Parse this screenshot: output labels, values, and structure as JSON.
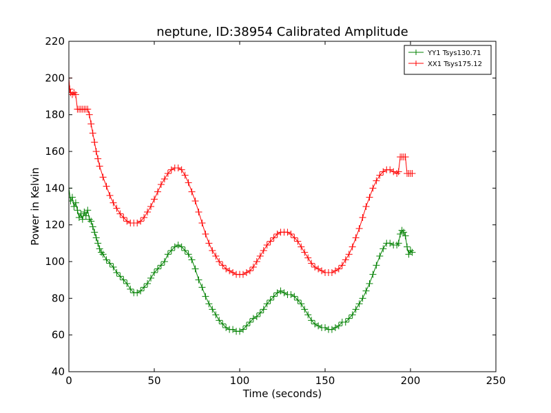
{
  "chart_data": {
    "type": "line",
    "title": "neptune, ID:38954 Calibrated Amplitude",
    "xlabel": "Time (seconds)",
    "ylabel": "Power in Kelvin",
    "xlim": [
      0,
      250
    ],
    "ylim": [
      40,
      220
    ],
    "xticks": [
      "0",
      "50",
      "100",
      "150",
      "200",
      "250"
    ],
    "yticks": [
      "40",
      "60",
      "80",
      "100",
      "120",
      "140",
      "160",
      "180",
      "200",
      "220"
    ],
    "grid": false,
    "legend_position": "top-right",
    "marker": "+",
    "series": [
      {
        "name": "YY1 Tsys130.71",
        "color": "#008000",
        "points": [
          [
            0,
            140
          ],
          [
            1,
            133
          ],
          [
            2,
            135
          ],
          [
            3,
            130
          ],
          [
            4,
            132
          ],
          [
            5,
            128
          ],
          [
            6,
            124
          ],
          [
            7,
            126
          ],
          [
            8,
            123
          ],
          [
            9,
            127
          ],
          [
            10,
            125
          ],
          [
            11,
            128
          ],
          [
            12,
            123
          ],
          [
            13,
            122
          ],
          [
            14,
            119
          ],
          [
            15,
            116
          ],
          [
            16,
            113
          ],
          [
            17,
            110
          ],
          [
            18,
            107
          ],
          [
            19,
            105
          ],
          [
            20,
            104
          ],
          [
            22,
            101
          ],
          [
            24,
            99
          ],
          [
            26,
            97
          ],
          [
            28,
            94
          ],
          [
            30,
            92
          ],
          [
            32,
            90
          ],
          [
            34,
            88
          ],
          [
            36,
            85
          ],
          [
            38,
            83
          ],
          [
            40,
            83
          ],
          [
            42,
            84
          ],
          [
            44,
            86
          ],
          [
            46,
            88
          ],
          [
            48,
            91
          ],
          [
            50,
            94
          ],
          [
            52,
            96
          ],
          [
            54,
            98
          ],
          [
            56,
            100
          ],
          [
            58,
            104
          ],
          [
            60,
            106
          ],
          [
            62,
            108
          ],
          [
            64,
            109
          ],
          [
            66,
            108
          ],
          [
            68,
            106
          ],
          [
            70,
            104
          ],
          [
            72,
            101
          ],
          [
            74,
            96
          ],
          [
            76,
            90
          ],
          [
            78,
            86
          ],
          [
            80,
            81
          ],
          [
            82,
            77
          ],
          [
            84,
            74
          ],
          [
            86,
            71
          ],
          [
            88,
            68
          ],
          [
            90,
            66
          ],
          [
            92,
            64
          ],
          [
            94,
            63
          ],
          [
            96,
            63
          ],
          [
            98,
            62
          ],
          [
            100,
            62
          ],
          [
            102,
            63
          ],
          [
            104,
            65
          ],
          [
            106,
            67
          ],
          [
            108,
            69
          ],
          [
            110,
            70
          ],
          [
            112,
            72
          ],
          [
            114,
            74
          ],
          [
            116,
            77
          ],
          [
            118,
            79
          ],
          [
            120,
            81
          ],
          [
            122,
            83
          ],
          [
            124,
            84
          ],
          [
            126,
            83
          ],
          [
            128,
            82
          ],
          [
            130,
            82
          ],
          [
            132,
            81
          ],
          [
            134,
            79
          ],
          [
            136,
            77
          ],
          [
            138,
            74
          ],
          [
            140,
            71
          ],
          [
            142,
            68
          ],
          [
            144,
            66
          ],
          [
            146,
            65
          ],
          [
            148,
            64
          ],
          [
            150,
            64
          ],
          [
            152,
            63
          ],
          [
            154,
            63
          ],
          [
            156,
            64
          ],
          [
            158,
            65
          ],
          [
            160,
            67
          ],
          [
            162,
            67
          ],
          [
            164,
            69
          ],
          [
            166,
            71
          ],
          [
            168,
            74
          ],
          [
            170,
            77
          ],
          [
            172,
            80
          ],
          [
            174,
            84
          ],
          [
            176,
            88
          ],
          [
            178,
            93
          ],
          [
            180,
            98
          ],
          [
            182,
            103
          ],
          [
            184,
            107
          ],
          [
            186,
            110
          ],
          [
            188,
            110
          ],
          [
            190,
            109
          ],
          [
            192,
            109
          ],
          [
            193,
            110
          ],
          [
            194,
            115
          ],
          [
            195,
            117
          ],
          [
            196,
            116
          ],
          [
            197,
            114
          ],
          [
            198,
            108
          ],
          [
            199,
            104
          ],
          [
            200,
            106
          ],
          [
            201,
            105
          ]
        ]
      },
      {
        "name": "XX1 Tsys175.12",
        "color": "#ff0000",
        "points": [
          [
            0,
            200
          ],
          [
            0.5,
            194
          ],
          [
            1,
            192
          ],
          [
            2,
            191
          ],
          [
            3,
            192
          ],
          [
            4,
            191
          ],
          [
            5,
            183
          ],
          [
            6,
            183
          ],
          [
            7,
            183
          ],
          [
            8,
            183
          ],
          [
            9,
            183
          ],
          [
            10,
            183
          ],
          [
            11,
            183
          ],
          [
            12,
            180
          ],
          [
            13,
            175
          ],
          [
            14,
            170
          ],
          [
            15,
            165
          ],
          [
            16,
            160
          ],
          [
            17,
            156
          ],
          [
            18,
            152
          ],
          [
            20,
            146
          ],
          [
            22,
            141
          ],
          [
            24,
            136
          ],
          [
            26,
            132
          ],
          [
            28,
            129
          ],
          [
            30,
            126
          ],
          [
            32,
            124
          ],
          [
            34,
            122
          ],
          [
            36,
            121
          ],
          [
            38,
            121
          ],
          [
            40,
            121
          ],
          [
            42,
            122
          ],
          [
            44,
            124
          ],
          [
            46,
            127
          ],
          [
            48,
            130
          ],
          [
            50,
            134
          ],
          [
            52,
            138
          ],
          [
            54,
            142
          ],
          [
            56,
            145
          ],
          [
            58,
            148
          ],
          [
            60,
            150
          ],
          [
            62,
            151
          ],
          [
            64,
            151
          ],
          [
            66,
            150
          ],
          [
            68,
            147
          ],
          [
            70,
            143
          ],
          [
            72,
            138
          ],
          [
            74,
            133
          ],
          [
            76,
            127
          ],
          [
            78,
            121
          ],
          [
            80,
            115
          ],
          [
            82,
            110
          ],
          [
            84,
            106
          ],
          [
            86,
            103
          ],
          [
            88,
            100
          ],
          [
            90,
            98
          ],
          [
            92,
            96
          ],
          [
            94,
            95
          ],
          [
            96,
            94
          ],
          [
            98,
            93
          ],
          [
            100,
            93
          ],
          [
            102,
            93
          ],
          [
            104,
            94
          ],
          [
            106,
            95
          ],
          [
            108,
            97
          ],
          [
            110,
            100
          ],
          [
            112,
            103
          ],
          [
            114,
            106
          ],
          [
            116,
            109
          ],
          [
            118,
            111
          ],
          [
            120,
            113
          ],
          [
            122,
            115
          ],
          [
            124,
            116
          ],
          [
            126,
            116
          ],
          [
            128,
            116
          ],
          [
            130,
            115
          ],
          [
            132,
            113
          ],
          [
            134,
            111
          ],
          [
            136,
            108
          ],
          [
            138,
            105
          ],
          [
            140,
            102
          ],
          [
            142,
            99
          ],
          [
            144,
            97
          ],
          [
            146,
            96
          ],
          [
            148,
            95
          ],
          [
            150,
            94
          ],
          [
            152,
            94
          ],
          [
            154,
            94
          ],
          [
            156,
            95
          ],
          [
            158,
            96
          ],
          [
            160,
            98
          ],
          [
            162,
            101
          ],
          [
            164,
            104
          ],
          [
            166,
            108
          ],
          [
            168,
            113
          ],
          [
            170,
            118
          ],
          [
            172,
            124
          ],
          [
            174,
            130
          ],
          [
            176,
            135
          ],
          [
            178,
            140
          ],
          [
            180,
            144
          ],
          [
            182,
            147
          ],
          [
            184,
            149
          ],
          [
            186,
            150
          ],
          [
            188,
            150
          ],
          [
            190,
            149
          ],
          [
            192,
            148
          ],
          [
            193,
            149
          ],
          [
            194,
            157
          ],
          [
            195,
            157
          ],
          [
            196,
            157
          ],
          [
            197,
            157
          ],
          [
            198,
            148
          ],
          [
            199,
            148
          ],
          [
            200,
            148
          ],
          [
            201,
            148
          ]
        ]
      }
    ]
  }
}
